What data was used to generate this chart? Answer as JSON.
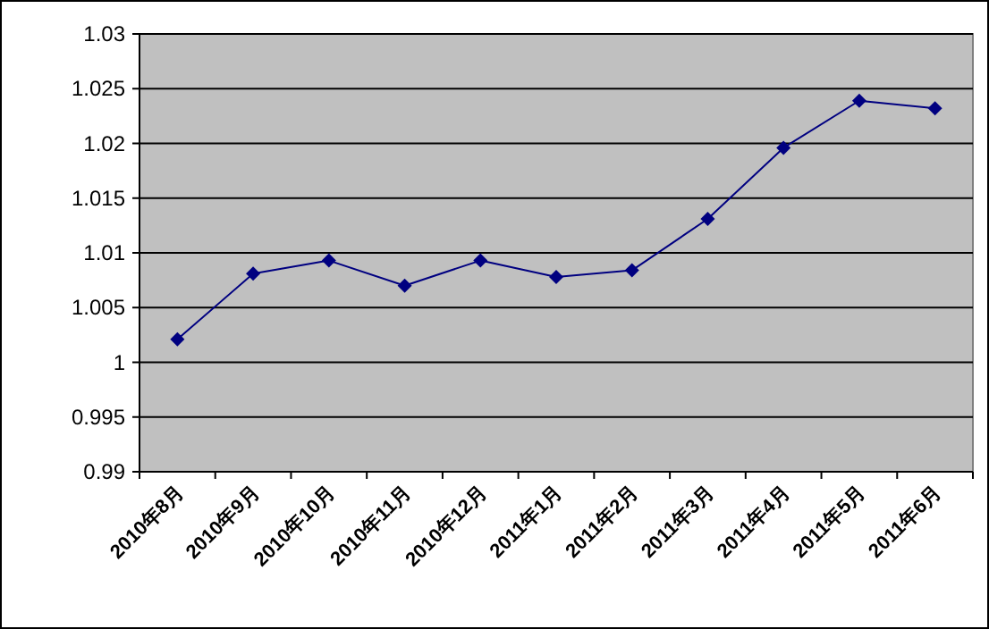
{
  "chart_data": {
    "type": "line",
    "categories": [
      "2010年8月",
      "2010年9月",
      "2010年10月",
      "2010年11月",
      "2010年12月",
      "2011年1月",
      "2011年2月",
      "2011年3月",
      "2011年4月",
      "2011年5月",
      "2011年6月"
    ],
    "series": [
      {
        "color": "#000080",
        "values": [
          1.0021,
          1.0081,
          1.0093,
          1.007,
          1.0093,
          1.0078,
          1.0084,
          1.0131,
          1.0196,
          1.0239,
          1.0232
        ]
      }
    ],
    "ylim": [
      0.99,
      1.03
    ],
    "yticks": [
      0.99,
      0.995,
      1,
      1.005,
      1.01,
      1.015,
      1.02,
      1.025,
      1.03
    ],
    "grid": "y",
    "marker": "diamond",
    "line_style": "solid"
  }
}
